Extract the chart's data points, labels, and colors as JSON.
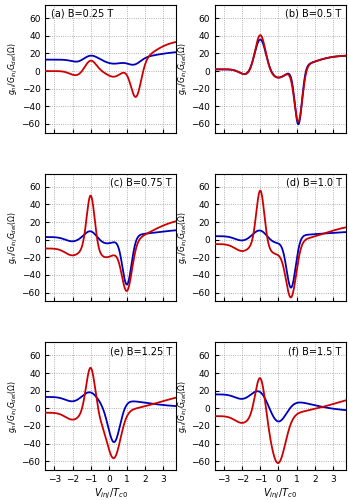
{
  "panels": [
    {
      "label": "(a) B=0.25 T",
      "label_loc": "left"
    },
    {
      "label": "(b) B=0.5 T",
      "label_loc": "right"
    },
    {
      "label": "(c) B=0.75 T",
      "label_loc": "right"
    },
    {
      "label": "(d) B=1.0 T",
      "label_loc": "right"
    },
    {
      "label": "(e) B=1.25 T",
      "label_loc": "right"
    },
    {
      "label": "(f) B=1.5 T",
      "label_loc": "right"
    }
  ],
  "xlim": [
    -3.5,
    3.7
  ],
  "ylim": [
    -70,
    75
  ],
  "yticks": [
    -60,
    -40,
    -20,
    0,
    20,
    40,
    60
  ],
  "xticks": [
    -3,
    -2,
    -1,
    0,
    1,
    2,
    3
  ],
  "red_color": "#cc0000",
  "blue_color": "#0000bb",
  "background": "#ffffff",
  "grid_color": "#999999",
  "line_width": 1.3
}
